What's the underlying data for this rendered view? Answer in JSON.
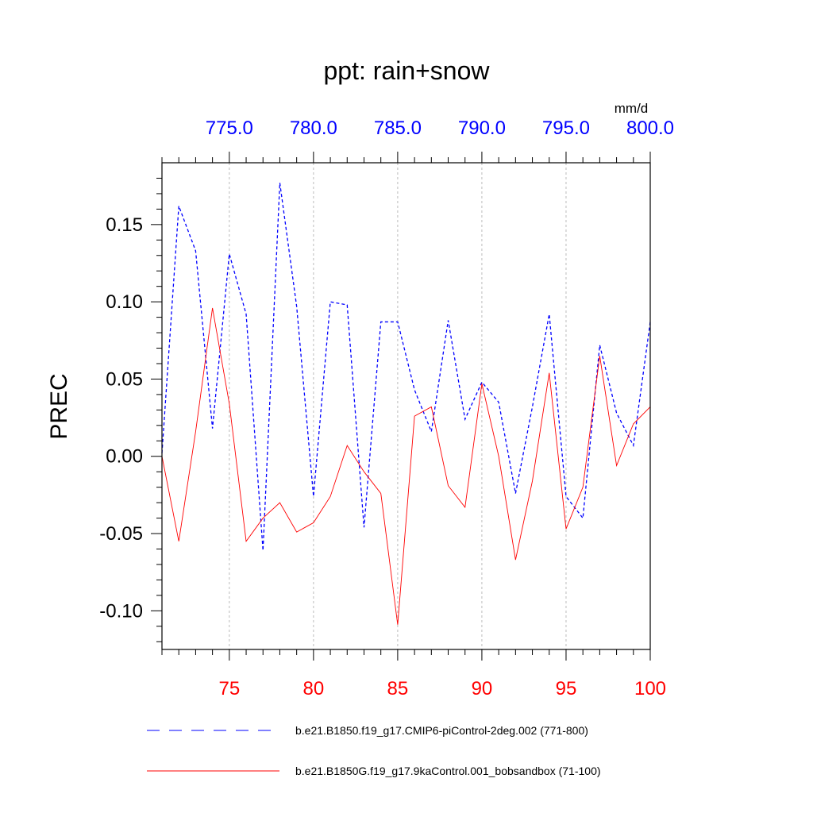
{
  "chart_data": {
    "type": "line",
    "title": "ppt: rain+snow",
    "ylabel": "PREC",
    "units": "mm/d",
    "ylim": [
      -0.125,
      0.19
    ],
    "yticks": [
      0.15,
      0.1,
      0.05,
      0.0,
      -0.05,
      -0.1
    ],
    "ytick_labels": [
      "0.15",
      "0.10",
      "0.05",
      "0.00",
      "-0.05",
      "-0.10"
    ],
    "bottom_axis": {
      "range": [
        71,
        100
      ],
      "ticks": [
        75,
        80,
        85,
        90,
        95,
        100
      ],
      "tick_labels": [
        "75",
        "80",
        "85",
        "90",
        "95",
        "100"
      ],
      "color": "#ff0000"
    },
    "top_axis": {
      "range": [
        771,
        800
      ],
      "ticks": [
        775,
        780,
        785,
        790,
        795,
        800
      ],
      "tick_labels": [
        "775.0",
        "780.0",
        "785.0",
        "790.0",
        "795.0",
        "800.0"
      ],
      "color": "#0000ff"
    },
    "grid": "vertical dashed at major ticks",
    "legend_position": "bottom",
    "series": [
      {
        "name": "b.e21.B1850.f19_g17.CMIP6-piControl-2deg.002 (771-800)",
        "axis": "top",
        "color": "#0000ff",
        "dash": "dashed",
        "x": [
          771,
          772,
          773,
          774,
          775,
          776,
          777,
          778,
          779,
          780,
          781,
          782,
          783,
          784,
          785,
          786,
          787,
          788,
          789,
          790,
          791,
          792,
          793,
          794,
          795,
          796,
          797,
          798,
          799,
          800
        ],
        "values": [
          0.002,
          0.162,
          0.133,
          0.018,
          0.131,
          0.092,
          -0.061,
          0.177,
          0.097,
          -0.026,
          0.1,
          0.098,
          -0.046,
          0.087,
          0.087,
          0.043,
          0.016,
          0.088,
          0.024,
          0.048,
          0.035,
          -0.024,
          0.032,
          0.092,
          -0.026,
          -0.04,
          0.072,
          0.028,
          0.007,
          0.087
        ]
      },
      {
        "name": "b.e21.B1850G.f19_g17.9kaControl.001_bobsandbox (71-100)",
        "axis": "bottom",
        "color": "#ff0000",
        "dash": "solid",
        "x": [
          71,
          72,
          73,
          74,
          75,
          76,
          77,
          78,
          79,
          80,
          81,
          82,
          83,
          84,
          85,
          86,
          87,
          88,
          89,
          90,
          91,
          92,
          93,
          94,
          95,
          96,
          97,
          98,
          99,
          100
        ],
        "values": [
          0.0,
          -0.055,
          0.016,
          0.096,
          0.034,
          -0.055,
          -0.04,
          -0.03,
          -0.049,
          -0.043,
          -0.026,
          0.007,
          -0.01,
          -0.024,
          -0.109,
          0.026,
          0.032,
          -0.019,
          -0.033,
          0.047,
          0.0,
          -0.067,
          -0.016,
          0.054,
          -0.047,
          -0.02,
          0.065,
          -0.006,
          0.021,
          0.032
        ]
      }
    ]
  }
}
